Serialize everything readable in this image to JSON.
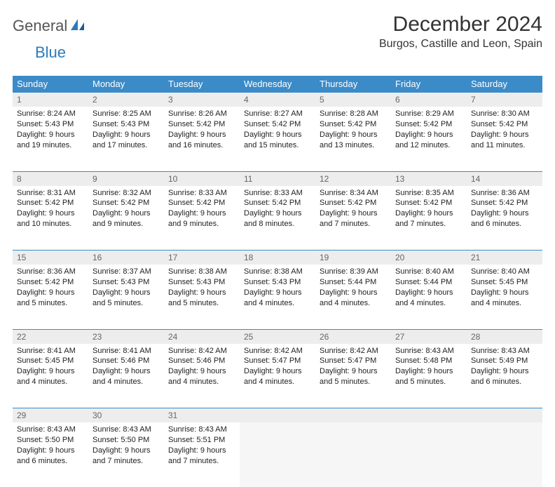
{
  "colors": {
    "header_bg": "#3b8bc8",
    "header_fg": "#ffffff",
    "daynum_bg": "#ededed",
    "daynum_fg": "#666666",
    "border": "#3b8bc8",
    "text": "#222222",
    "logo_gray": "#555555",
    "logo_blue": "#2b7bbd"
  },
  "logo": {
    "word1": "General",
    "word2": "Blue"
  },
  "title": "December 2024",
  "location": "Burgos, Castille and Leon, Spain",
  "dow": [
    "Sunday",
    "Monday",
    "Tuesday",
    "Wednesday",
    "Thursday",
    "Friday",
    "Saturday"
  ],
  "weeks": [
    [
      {
        "n": "1",
        "sr": "Sunrise: 8:24 AM",
        "ss": "Sunset: 5:43 PM",
        "d1": "Daylight: 9 hours",
        "d2": "and 19 minutes."
      },
      {
        "n": "2",
        "sr": "Sunrise: 8:25 AM",
        "ss": "Sunset: 5:43 PM",
        "d1": "Daylight: 9 hours",
        "d2": "and 17 minutes."
      },
      {
        "n": "3",
        "sr": "Sunrise: 8:26 AM",
        "ss": "Sunset: 5:42 PM",
        "d1": "Daylight: 9 hours",
        "d2": "and 16 minutes."
      },
      {
        "n": "4",
        "sr": "Sunrise: 8:27 AM",
        "ss": "Sunset: 5:42 PM",
        "d1": "Daylight: 9 hours",
        "d2": "and 15 minutes."
      },
      {
        "n": "5",
        "sr": "Sunrise: 8:28 AM",
        "ss": "Sunset: 5:42 PM",
        "d1": "Daylight: 9 hours",
        "d2": "and 13 minutes."
      },
      {
        "n": "6",
        "sr": "Sunrise: 8:29 AM",
        "ss": "Sunset: 5:42 PM",
        "d1": "Daylight: 9 hours",
        "d2": "and 12 minutes."
      },
      {
        "n": "7",
        "sr": "Sunrise: 8:30 AM",
        "ss": "Sunset: 5:42 PM",
        "d1": "Daylight: 9 hours",
        "d2": "and 11 minutes."
      }
    ],
    [
      {
        "n": "8",
        "sr": "Sunrise: 8:31 AM",
        "ss": "Sunset: 5:42 PM",
        "d1": "Daylight: 9 hours",
        "d2": "and 10 minutes."
      },
      {
        "n": "9",
        "sr": "Sunrise: 8:32 AM",
        "ss": "Sunset: 5:42 PM",
        "d1": "Daylight: 9 hours",
        "d2": "and 9 minutes."
      },
      {
        "n": "10",
        "sr": "Sunrise: 8:33 AM",
        "ss": "Sunset: 5:42 PM",
        "d1": "Daylight: 9 hours",
        "d2": "and 9 minutes."
      },
      {
        "n": "11",
        "sr": "Sunrise: 8:33 AM",
        "ss": "Sunset: 5:42 PM",
        "d1": "Daylight: 9 hours",
        "d2": "and 8 minutes."
      },
      {
        "n": "12",
        "sr": "Sunrise: 8:34 AM",
        "ss": "Sunset: 5:42 PM",
        "d1": "Daylight: 9 hours",
        "d2": "and 7 minutes."
      },
      {
        "n": "13",
        "sr": "Sunrise: 8:35 AM",
        "ss": "Sunset: 5:42 PM",
        "d1": "Daylight: 9 hours",
        "d2": "and 7 minutes."
      },
      {
        "n": "14",
        "sr": "Sunrise: 8:36 AM",
        "ss": "Sunset: 5:42 PM",
        "d1": "Daylight: 9 hours",
        "d2": "and 6 minutes."
      }
    ],
    [
      {
        "n": "15",
        "sr": "Sunrise: 8:36 AM",
        "ss": "Sunset: 5:42 PM",
        "d1": "Daylight: 9 hours",
        "d2": "and 5 minutes."
      },
      {
        "n": "16",
        "sr": "Sunrise: 8:37 AM",
        "ss": "Sunset: 5:43 PM",
        "d1": "Daylight: 9 hours",
        "d2": "and 5 minutes."
      },
      {
        "n": "17",
        "sr": "Sunrise: 8:38 AM",
        "ss": "Sunset: 5:43 PM",
        "d1": "Daylight: 9 hours",
        "d2": "and 5 minutes."
      },
      {
        "n": "18",
        "sr": "Sunrise: 8:38 AM",
        "ss": "Sunset: 5:43 PM",
        "d1": "Daylight: 9 hours",
        "d2": "and 4 minutes."
      },
      {
        "n": "19",
        "sr": "Sunrise: 8:39 AM",
        "ss": "Sunset: 5:44 PM",
        "d1": "Daylight: 9 hours",
        "d2": "and 4 minutes."
      },
      {
        "n": "20",
        "sr": "Sunrise: 8:40 AM",
        "ss": "Sunset: 5:44 PM",
        "d1": "Daylight: 9 hours",
        "d2": "and 4 minutes."
      },
      {
        "n": "21",
        "sr": "Sunrise: 8:40 AM",
        "ss": "Sunset: 5:45 PM",
        "d1": "Daylight: 9 hours",
        "d2": "and 4 minutes."
      }
    ],
    [
      {
        "n": "22",
        "sr": "Sunrise: 8:41 AM",
        "ss": "Sunset: 5:45 PM",
        "d1": "Daylight: 9 hours",
        "d2": "and 4 minutes."
      },
      {
        "n": "23",
        "sr": "Sunrise: 8:41 AM",
        "ss": "Sunset: 5:46 PM",
        "d1": "Daylight: 9 hours",
        "d2": "and 4 minutes."
      },
      {
        "n": "24",
        "sr": "Sunrise: 8:42 AM",
        "ss": "Sunset: 5:46 PM",
        "d1": "Daylight: 9 hours",
        "d2": "and 4 minutes."
      },
      {
        "n": "25",
        "sr": "Sunrise: 8:42 AM",
        "ss": "Sunset: 5:47 PM",
        "d1": "Daylight: 9 hours",
        "d2": "and 4 minutes."
      },
      {
        "n": "26",
        "sr": "Sunrise: 8:42 AM",
        "ss": "Sunset: 5:47 PM",
        "d1": "Daylight: 9 hours",
        "d2": "and 5 minutes."
      },
      {
        "n": "27",
        "sr": "Sunrise: 8:43 AM",
        "ss": "Sunset: 5:48 PM",
        "d1": "Daylight: 9 hours",
        "d2": "and 5 minutes."
      },
      {
        "n": "28",
        "sr": "Sunrise: 8:43 AM",
        "ss": "Sunset: 5:49 PM",
        "d1": "Daylight: 9 hours",
        "d2": "and 6 minutes."
      }
    ],
    [
      {
        "n": "29",
        "sr": "Sunrise: 8:43 AM",
        "ss": "Sunset: 5:50 PM",
        "d1": "Daylight: 9 hours",
        "d2": "and 6 minutes."
      },
      {
        "n": "30",
        "sr": "Sunrise: 8:43 AM",
        "ss": "Sunset: 5:50 PM",
        "d1": "Daylight: 9 hours",
        "d2": "and 7 minutes."
      },
      {
        "n": "31",
        "sr": "Sunrise: 8:43 AM",
        "ss": "Sunset: 5:51 PM",
        "d1": "Daylight: 9 hours",
        "d2": "and 7 minutes."
      },
      null,
      null,
      null,
      null
    ]
  ]
}
